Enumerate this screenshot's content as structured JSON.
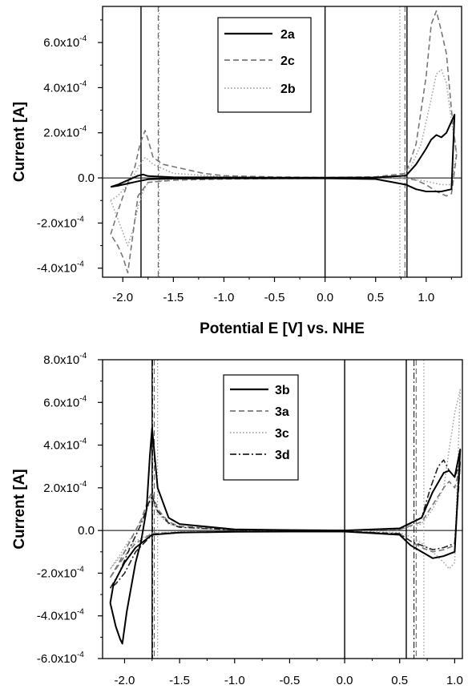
{
  "chart_data": [
    {
      "type": "line",
      "xlabel": "Potential E [V] vs. NHE",
      "ylabel": "Current [A]",
      "xlim": [
        -2.2,
        1.35
      ],
      "ylim": [
        -0.00044,
        0.00076
      ],
      "xticks": [
        -2.0,
        -1.5,
        -1.0,
        -0.5,
        0.0,
        0.5,
        1.0
      ],
      "xtick_labels": [
        "-2.0",
        "-1.5",
        "-1.0",
        "-0.5",
        "0.0",
        "0.5",
        "1.0"
      ],
      "yticks": [
        -0.0004,
        -0.0002,
        0,
        0.0002,
        0.0004,
        0.0006
      ],
      "ytick_labels": [
        {
          "m": "-4.0x10",
          "e": "-4"
        },
        {
          "m": "-2.0x10",
          "e": "-4"
        },
        {
          "m": "0.0",
          "e": ""
        },
        {
          "m": "2.0x10",
          "e": "-4"
        },
        {
          "m": "4.0x10",
          "e": "-4"
        },
        {
          "m": "6.0x10",
          "e": "-4"
        }
      ],
      "legend_position": "top-center",
      "vlines": [
        {
          "x": -1.82,
          "style": "solid"
        },
        {
          "x": -1.65,
          "style": "dashed"
        },
        {
          "x": -1.64,
          "style": "dotted"
        },
        {
          "x": 0.0,
          "style": "solid"
        },
        {
          "x": 0.74,
          "style": "dotted"
        },
        {
          "x": 0.79,
          "style": "dashed"
        },
        {
          "x": 0.81,
          "style": "solid"
        }
      ],
      "series": [
        {
          "name": "2a",
          "style": "solid",
          "color": "#000000",
          "x": [
            -2.12,
            -2.05,
            -1.95,
            -1.85,
            -1.8,
            -1.75,
            -1.5,
            -1.0,
            -0.5,
            0.0,
            0.5,
            0.8,
            0.9,
            1.0,
            1.05,
            1.1,
            1.15,
            1.2,
            1.25,
            1.28,
            1.25,
            1.15,
            1.0,
            0.9,
            0.8,
            0.5,
            0.0,
            -0.5,
            -1.0,
            -1.5,
            -1.75,
            -1.85,
            -1.95,
            -2.05,
            -2.12
          ],
          "y": [
            -4e-05,
            -3e-05,
            -1e-05,
            1e-05,
            1.5e-05,
            8e-06,
            3e-06,
            2e-06,
            1e-06,
            1e-06,
            2e-06,
            1e-05,
            6e-05,
            0.00013,
            0.00017,
            0.00019,
            0.00018,
            0.0002,
            0.00025,
            0.00028,
            -5e-05,
            -6e-05,
            -6e-05,
            -5e-05,
            -3e-05,
            -5e-06,
            -2e-06,
            -2e-06,
            -2e-06,
            -3e-06,
            -6e-06,
            -1.5e-05,
            -2.5e-05,
            -3.5e-05,
            -4e-05
          ]
        },
        {
          "name": "2c",
          "style": "dashed",
          "color": "#777777",
          "x": [
            -2.12,
            -2.05,
            -1.95,
            -1.88,
            -1.83,
            -1.78,
            -1.75,
            -1.7,
            -1.6,
            -1.5,
            -1.2,
            -1.0,
            -0.5,
            0.0,
            0.5,
            0.8,
            0.9,
            1.0,
            1.05,
            1.1,
            1.15,
            1.2,
            1.25,
            1.3,
            1.25,
            1.2,
            1.1,
            1.0,
            0.9,
            0.8,
            0.5,
            0.0,
            -0.5,
            -1.0,
            -1.5,
            -1.75,
            -1.85,
            -1.9,
            -1.95,
            -2.0,
            -2.05,
            -2.12
          ],
          "y": [
            -0.00025,
            -0.00015,
            -2e-05,
            5e-05,
            0.00015,
            0.00021,
            0.00017,
            9e-05,
            6e-05,
            5e-05,
            2e-05,
            1e-05,
            4e-06,
            2e-06,
            5e-06,
            2e-05,
            0.00015,
            0.00045,
            0.00068,
            0.00074,
            0.00065,
            0.00055,
            0.0003,
            0.0001,
            -7e-05,
            -8e-05,
            -6e-05,
            -3e-05,
            -1e-05,
            -2e-06,
            0,
            -2e-06,
            -3e-06,
            -5e-06,
            -1e-05,
            -2e-05,
            -8e-05,
            -0.00025,
            -0.00042,
            -0.00035,
            -0.0003,
            -0.00025
          ]
        },
        {
          "name": "2b",
          "style": "dotted",
          "color": "#a8a8a8",
          "x": [
            -2.12,
            -2.05,
            -1.95,
            -1.88,
            -1.83,
            -1.78,
            -1.75,
            -1.7,
            -1.5,
            -1.0,
            -0.5,
            0.0,
            0.5,
            0.75,
            0.85,
            0.95,
            1.05,
            1.1,
            1.15,
            1.2,
            1.25,
            1.3,
            1.25,
            1.15,
            1.05,
            0.95,
            0.85,
            0.75,
            0.5,
            0.0,
            -0.5,
            -1.0,
            -1.5,
            -1.75,
            -1.8,
            -1.85,
            -1.9,
            -1.95,
            -2.05,
            -2.12
          ],
          "y": [
            -0.0001,
            -8e-05,
            -3e-05,
            2e-05,
            6e-05,
            9e-05,
            8e-05,
            6e-05,
            2e-05,
            5e-06,
            2e-06,
            1e-06,
            3e-06,
            1e-05,
            5e-05,
            0.00015,
            0.00035,
            0.00046,
            0.00048,
            0.00042,
            0.00025,
            0.00012,
            -3e-05,
            -3e-05,
            -2e-05,
            -1e-05,
            -5e-06,
            -2e-06,
            -1e-06,
            -1e-06,
            -2e-06,
            -3e-06,
            -6e-06,
            -2e-05,
            -6e-05,
            -0.00013,
            -0.00023,
            -0.0003,
            -0.00018,
            -0.0001
          ]
        }
      ]
    },
    {
      "type": "line",
      "xlabel": "Potential E [V] vs. NHE",
      "ylabel": "Current [A]",
      "xlim": [
        -2.2,
        1.07
      ],
      "ylim": [
        -0.0006,
        0.0008
      ],
      "xticks": [
        -2.0,
        -1.5,
        -1.0,
        -0.5,
        0.0,
        0.5,
        1.0
      ],
      "xtick_labels": [
        "-2.0",
        "-1.5",
        "-1.0",
        "-0.5",
        "0.0",
        "0.5",
        "1.0"
      ],
      "yticks": [
        -0.0006,
        -0.0004,
        -0.0002,
        0,
        0.0002,
        0.0004,
        0.0006,
        0.0008
      ],
      "ytick_labels": [
        {
          "m": "-6.0x10",
          "e": "-4"
        },
        {
          "m": "-4.0x10",
          "e": "-4"
        },
        {
          "m": "-2.0x10",
          "e": "-4"
        },
        {
          "m": "0.0",
          "e": ""
        },
        {
          "m": "2.0x10",
          "e": "-4"
        },
        {
          "m": "4.0x10",
          "e": "-4"
        },
        {
          "m": "6.0x10",
          "e": "-4"
        },
        {
          "m": "8.0x10",
          "e": "-4"
        }
      ],
      "legend_position": "top-center",
      "vlines": [
        {
          "x": -1.75,
          "style": "solid"
        },
        {
          "x": -1.745,
          "style": "dashdot"
        },
        {
          "x": -1.73,
          "style": "dashed"
        },
        {
          "x": -1.7,
          "style": "dotted"
        },
        {
          "x": 0.0,
          "style": "solid"
        },
        {
          "x": 0.56,
          "style": "solid"
        },
        {
          "x": 0.63,
          "style": "dashdot"
        },
        {
          "x": 0.65,
          "style": "dashed"
        },
        {
          "x": 0.72,
          "style": "dotted"
        }
      ],
      "series": [
        {
          "name": "3b",
          "style": "solid",
          "color": "#000000",
          "x": [
            -2.13,
            -2.08,
            -2.04,
            -2.02,
            -1.98,
            -1.9,
            -1.85,
            -1.8,
            -1.77,
            -1.75,
            -1.7,
            -1.6,
            -1.5,
            -1.0,
            -0.5,
            0.0,
            0.5,
            0.7,
            0.8,
            0.9,
            0.95,
            1.0,
            1.05,
            1.0,
            0.9,
            0.8,
            0.7,
            0.6,
            0.5,
            0.0,
            -0.5,
            -1.0,
            -1.5,
            -1.75,
            -1.9,
            -2.0,
            -2.1,
            -2.13
          ],
          "y": [
            -0.00034,
            -0.00045,
            -0.00051,
            -0.00053,
            -0.00038,
            -0.00015,
            -5e-05,
            0.0001,
            0.00035,
            0.00048,
            0.0002,
            6e-05,
            3e-05,
            5e-06,
            2e-06,
            0,
            1e-05,
            6e-05,
            0.00018,
            0.00027,
            0.00028,
            0.00025,
            0.00038,
            -0.0001,
            -0.00012,
            -0.00013,
            -0.0001,
            -7e-05,
            -2e-05,
            -5e-06,
            -5e-06,
            -6e-06,
            -1e-05,
            -2e-05,
            -8e-05,
            -0.00015,
            -0.00025,
            -0.00034
          ]
        },
        {
          "name": "3a",
          "style": "dashed",
          "color": "#777777",
          "x": [
            -2.13,
            -2.05,
            -1.95,
            -1.85,
            -1.78,
            -1.75,
            -1.7,
            -1.6,
            -1.5,
            -1.0,
            -0.5,
            0.0,
            0.5,
            0.7,
            0.8,
            0.9,
            0.95,
            1.0,
            1.05,
            1.0,
            0.9,
            0.8,
            0.7,
            0.6,
            0.5,
            0.0,
            -0.5,
            -1.0,
            -1.5,
            -1.75,
            -1.9,
            -2.0,
            -2.13
          ],
          "y": [
            -0.00022,
            -0.00015,
            -5e-05,
            5e-05,
            0.00015,
            0.00018,
            0.0001,
            4e-05,
            2e-05,
            4e-06,
            2e-06,
            0,
            5e-06,
            4e-05,
            0.00012,
            0.0002,
            0.00023,
            0.0002,
            0.0003,
            -7e-05,
            -9e-05,
            -0.0001,
            -8e-05,
            -5e-05,
            -1.5e-05,
            -4e-06,
            -4e-06,
            -5e-06,
            -8e-06,
            -1.5e-05,
            -6e-05,
            -0.00012,
            -0.00022
          ]
        },
        {
          "name": "3c",
          "style": "dotted",
          "color": "#a8a8a8",
          "x": [
            -2.13,
            -2.05,
            -1.95,
            -1.85,
            -1.78,
            -1.75,
            -1.7,
            -1.6,
            -1.5,
            -1.0,
            -0.5,
            0.0,
            0.5,
            0.7,
            0.8,
            0.9,
            0.95,
            1.0,
            1.05,
            1.0,
            0.95,
            0.9,
            0.8,
            0.7,
            0.6,
            0.5,
            0.0,
            -0.5,
            -1.0,
            -1.5,
            -1.75,
            -1.9,
            -2.0,
            -2.13
          ],
          "y": [
            -0.00018,
            -0.00012,
            -4e-05,
            4e-05,
            0.00012,
            0.00015,
            8e-05,
            3e-05,
            1.5e-05,
            3e-06,
            1e-06,
            0,
            5e-06,
            3e-05,
            0.0001,
            0.0002,
            0.00038,
            0.00055,
            0.00066,
            -0.00015,
            -0.00018,
            -0.00015,
            -0.0001,
            -6e-05,
            -3e-05,
            -1e-05,
            -3e-06,
            -3e-06,
            -4e-06,
            -6e-06,
            -1.2e-05,
            -5e-05,
            -0.0001,
            -0.00018
          ]
        },
        {
          "name": "3d",
          "style": "dashdot",
          "color": "#222222",
          "x": [
            -2.13,
            -2.05,
            -1.95,
            -1.85,
            -1.78,
            -1.75,
            -1.7,
            -1.6,
            -1.5,
            -1.0,
            -0.5,
            0.0,
            0.5,
            0.7,
            0.78,
            0.85,
            0.9,
            0.95,
            1.0,
            1.05,
            1.0,
            0.9,
            0.8,
            0.7,
            0.6,
            0.5,
            0.0,
            -0.5,
            -1.0,
            -1.5,
            -1.75,
            -1.9,
            -2.0,
            -2.08,
            -2.13
          ],
          "y": [
            -0.00027,
            -0.0002,
            -8e-05,
            3e-05,
            0.00013,
            0.00016,
            9e-05,
            3.5e-05,
            1.5e-05,
            3e-06,
            1e-06,
            0,
            8e-06,
            6e-05,
            0.0002,
            0.0003,
            0.00033,
            0.00028,
            0.00025,
            0.00032,
            -6e-05,
            -8e-05,
            -9e-05,
            -7e-05,
            -5e-05,
            -1.5e-05,
            -4e-06,
            -4e-06,
            -5e-06,
            -1e-05,
            -2e-05,
            -0.0001,
            -0.0002,
            -0.00025,
            -0.00027
          ]
        }
      ]
    }
  ]
}
